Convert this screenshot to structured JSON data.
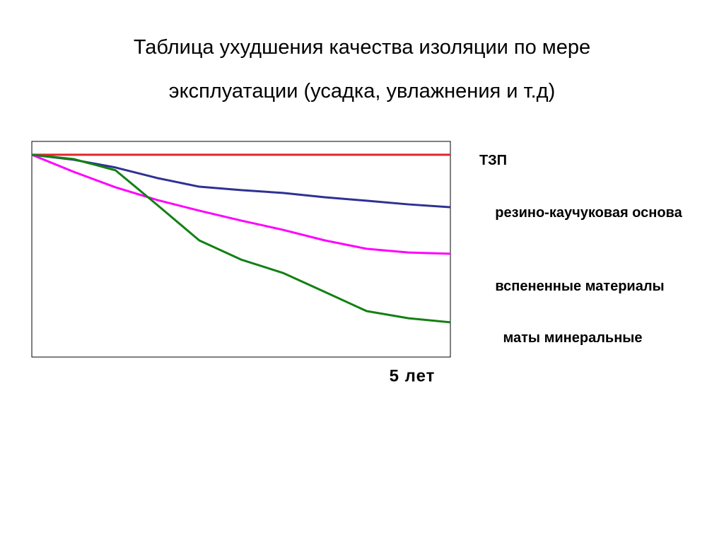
{
  "chart_data": {
    "type": "line",
    "title": "Таблица ухудшения качества изоляции по мере эксплуатации (усадка, увлажнения и т.д)",
    "x_label": "5 лет",
    "x": [
      0,
      0.5,
      1,
      1.5,
      2,
      2.5,
      3,
      3.5,
      4,
      4.5,
      5
    ],
    "xlim": [
      0,
      5
    ],
    "ylim": [
      0,
      100
    ],
    "series": [
      {
        "name": "ТЗП",
        "color": "#e0262a",
        "values": [
          93.8,
          93.8,
          93.8,
          93.8,
          93.8,
          93.8,
          93.8,
          93.8,
          93.8,
          93.8,
          93.8
        ]
      },
      {
        "name": "резино-каучуковая основа",
        "color": "#2e3192",
        "values": [
          93.8,
          91.5,
          87.9,
          83.0,
          79.0,
          77.4,
          76.1,
          74.1,
          72.5,
          70.8,
          69.5
        ]
      },
      {
        "name": "вспененные материалы",
        "color": "#ff00ff",
        "values": [
          93.8,
          85.9,
          78.7,
          72.8,
          67.9,
          63.3,
          59.0,
          54.1,
          50.2,
          48.5,
          47.9
        ]
      },
      {
        "name": "маты минеральные",
        "color": "#138013",
        "values": [
          93.8,
          91.8,
          86.6,
          70.5,
          54.1,
          45.2,
          39.0,
          30.2,
          21.3,
          18.0,
          16.1
        ]
      }
    ]
  }
}
